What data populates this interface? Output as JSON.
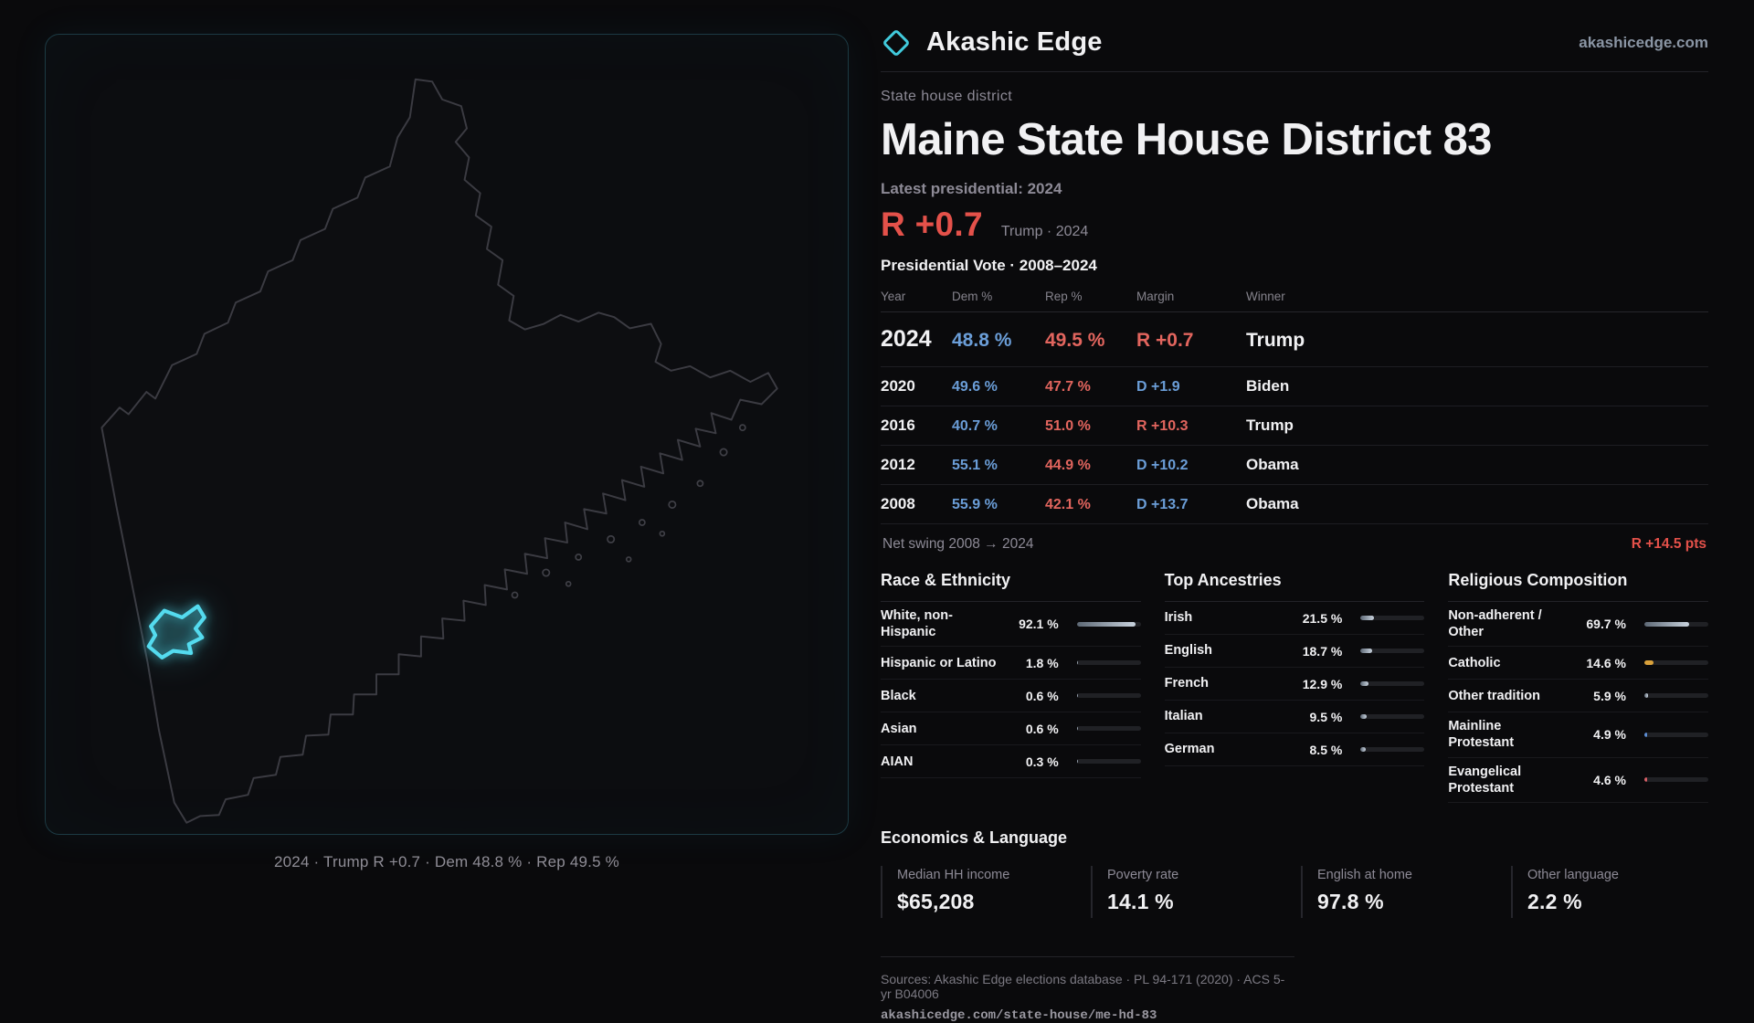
{
  "brand": {
    "name": "Akashic Edge",
    "site": "akashicedge.com"
  },
  "page": {
    "kicker": "State house district",
    "title": "Maine State House District 83",
    "latest_label": "Latest presidential: 2024",
    "headline_margin": "R +0.7",
    "headline_context": "Trump · 2024"
  },
  "map": {
    "caption": "2024 · Trump R +0.7 · Dem 48.8 % · Rep 49.5 %",
    "district_color": "#4fd9ec"
  },
  "vote_table": {
    "title": "Presidential Vote · 2008–2024",
    "headers": {
      "year": "Year",
      "dem": "Dem %",
      "rep": "Rep %",
      "margin": "Margin",
      "winner": "Winner"
    },
    "rows": [
      {
        "year": "2024",
        "dem": "48.8 %",
        "rep": "49.5 %",
        "margin": "R +0.7",
        "party": "R",
        "winner": "Trump"
      },
      {
        "year": "2020",
        "dem": "49.6 %",
        "rep": "47.7 %",
        "margin": "D +1.9",
        "party": "D",
        "winner": "Biden"
      },
      {
        "year": "2016",
        "dem": "40.7 %",
        "rep": "51.0 %",
        "margin": "R +10.3",
        "party": "R",
        "winner": "Trump"
      },
      {
        "year": "2012",
        "dem": "55.1 %",
        "rep": "44.9 %",
        "margin": "D +10.2",
        "party": "D",
        "winner": "Obama"
      },
      {
        "year": "2008",
        "dem": "55.9 %",
        "rep": "42.1 %",
        "margin": "D +13.7",
        "party": "D",
        "winner": "Obama"
      }
    ],
    "net_swing_label": "Net swing 2008 → 2024",
    "net_swing_value": "R +14.5 pts"
  },
  "demographics": {
    "race": {
      "title": "Race & Ethnicity",
      "rows": [
        {
          "label": "White, non-Hispanic",
          "value": "92.1 %",
          "pct": 92.1
        },
        {
          "label": "Hispanic or Latino",
          "value": "1.8 %",
          "pct": 1.8
        },
        {
          "label": "Black",
          "value": "0.6 %",
          "pct": 0.6
        },
        {
          "label": "Asian",
          "value": "0.6 %",
          "pct": 0.6
        },
        {
          "label": "AIAN",
          "value": "0.3 %",
          "pct": 0.3
        }
      ]
    },
    "ancestry": {
      "title": "Top Ancestries",
      "rows": [
        {
          "label": "Irish",
          "value": "21.5 %",
          "pct": 21.5
        },
        {
          "label": "English",
          "value": "18.7 %",
          "pct": 18.7
        },
        {
          "label": "French",
          "value": "12.9 %",
          "pct": 12.9
        },
        {
          "label": "Italian",
          "value": "9.5 %",
          "pct": 9.5
        },
        {
          "label": "German",
          "value": "8.5 %",
          "pct": 8.5
        }
      ]
    },
    "religion": {
      "title": "Religious Composition",
      "rows": [
        {
          "label": "Non-adherent / Other",
          "value": "69.7 %",
          "pct": 69.7
        },
        {
          "label": "Catholic",
          "value": "14.6 %",
          "pct": 14.6,
          "color": "#d9a13b"
        },
        {
          "label": "Other tradition",
          "value": "5.9 %",
          "pct": 5.9
        },
        {
          "label": "Mainline Protestant",
          "value": "4.9 %",
          "pct": 4.9,
          "color": "#5d8fd6"
        },
        {
          "label": "Evangelical Protestant",
          "value": "4.6 %",
          "pct": 4.6,
          "color": "#d85f66"
        }
      ]
    }
  },
  "economics": {
    "title": "Economics & Language",
    "stats": [
      {
        "label": "Median HH income",
        "value": "$65,208"
      },
      {
        "label": "Poverty rate",
        "value": "14.1 %"
      },
      {
        "label": "English at home",
        "value": "97.8 %"
      },
      {
        "label": "Other language",
        "value": "2.2 %"
      }
    ]
  },
  "footer": {
    "sources": "Sources: Akashic Edge elections database · PL 94-171 (2020) · ACS 5-yr B04006",
    "permalink": "akashicedge.com/state-house/me-hd-83"
  },
  "colors": {
    "dem": "#6b9ed8",
    "rep": "#e2655e",
    "accent": "#4fd9ec"
  }
}
